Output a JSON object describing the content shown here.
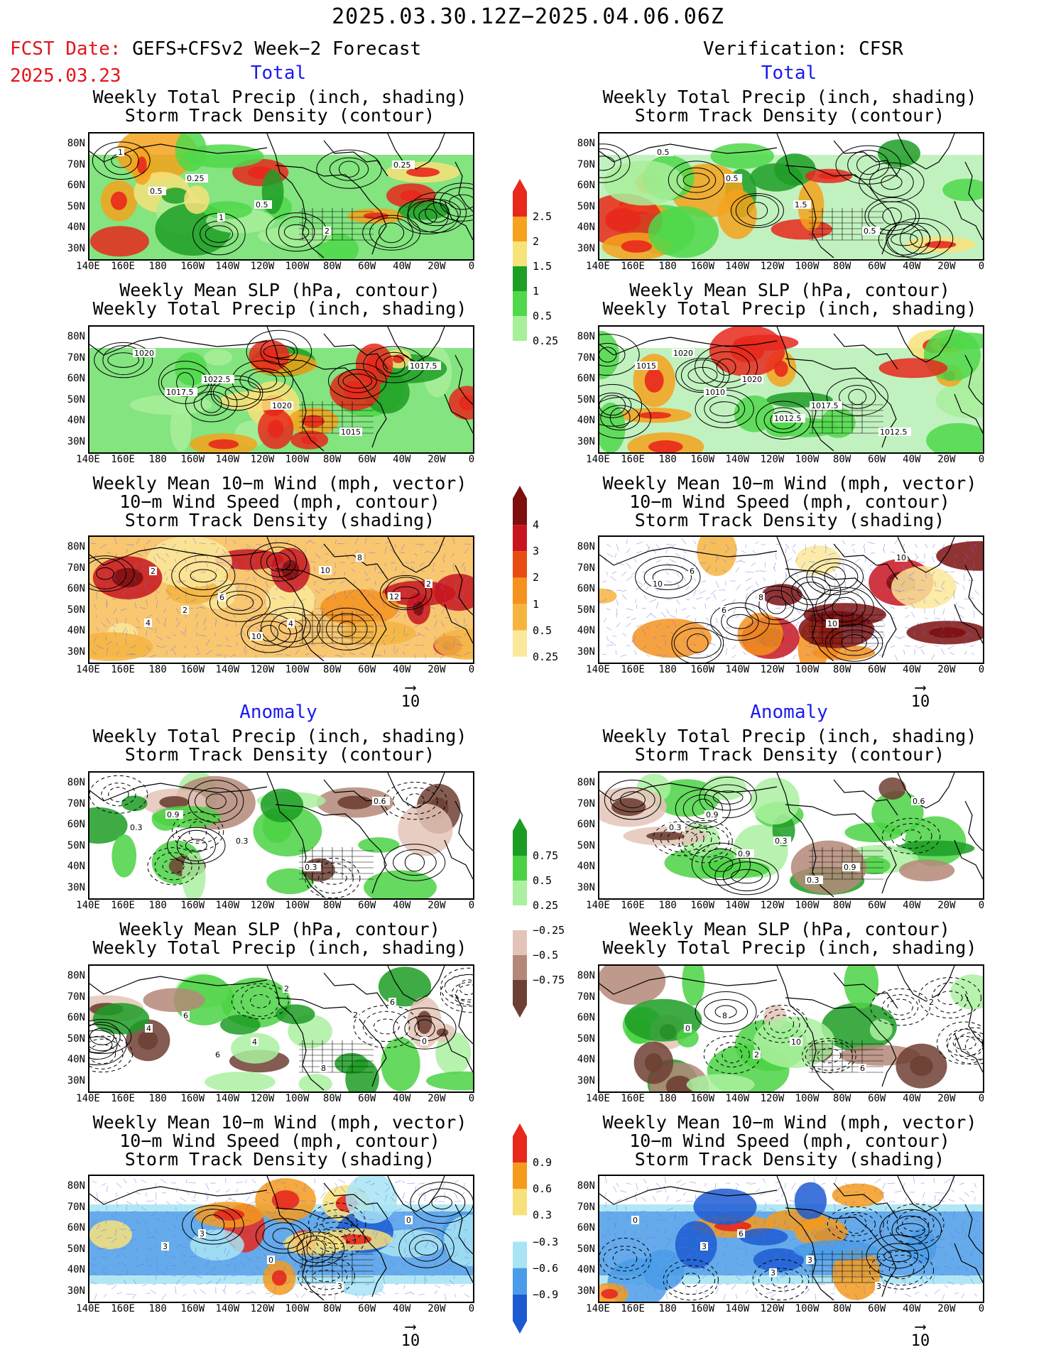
{
  "header": {
    "period": "2025.03.30.12Z−2025.04.06.06Z",
    "fcst_label": "FCST Date:",
    "forecast_name": "GEFS+CFSv2 Week−2 Forecast",
    "fcst_date": "2025.03.23",
    "verification": "Verification: CFSR"
  },
  "sections": {
    "total": "Total",
    "anomaly": "Anomaly"
  },
  "titles": {
    "precip_storm": "Weekly Total Precip (inch, shading)\nStorm Track Density (contour)",
    "slp_precip": "Weekly Mean SLP (hPa, contour)\nWeekly Total Precip (inch, shading)",
    "wind": "Weekly Mean 10−m Wind (mph, vector)\n10−m Wind Speed (mph, contour)\nStorm Track Density (shading)"
  },
  "axes": {
    "lat_labels": [
      "80N",
      "70N",
      "60N",
      "50N",
      "40N",
      "30N"
    ],
    "lon_labels": [
      "140E",
      "160E",
      "180",
      "160W",
      "140W",
      "120W",
      "100W",
      "80W",
      "60W",
      "40W",
      "20W",
      "0"
    ]
  },
  "vector_ref": "10",
  "colorbars": {
    "precip_total": {
      "labels": [
        "2.5",
        "2",
        "1.5",
        "1",
        "0.5",
        "0.25"
      ],
      "colors": [
        "#e8281c",
        "#f5a21c",
        "#f8e27a",
        "#1f9e26",
        "#4fd84a",
        "#a8ef9a",
        "#ffffff"
      ]
    },
    "storm_total": {
      "labels": [
        "4",
        "3",
        "2",
        "1",
        "0.5",
        "0.25"
      ],
      "colors": [
        "#7d0f0f",
        "#c8141e",
        "#e84c12",
        "#f5921e",
        "#f5b440",
        "#fbe89a",
        "#ffffff"
      ]
    },
    "precip_anom": {
      "labels": [
        "0.75",
        "0.5",
        "0.25",
        "−0.25",
        "−0.5",
        "−0.75"
      ],
      "colors": [
        "#1c9c24",
        "#4bd244",
        "#aaf0a0",
        "#ffffff",
        "#e4c4b8",
        "#b48878",
        "#6e4034"
      ]
    },
    "storm_anom": {
      "labels": [
        "0.9",
        "0.6",
        "0.3",
        "−0.3",
        "−0.6",
        "−0.9"
      ],
      "colors": [
        "#e8281c",
        "#f59a1c",
        "#f8e07a",
        "#ffffff",
        "#a8e4f4",
        "#4a9ce8",
        "#1c5ad2"
      ]
    }
  },
  "panel_labels": {
    "L1": [
      "1",
      "0.25",
      "0.5",
      "2",
      "0.25",
      "0.5",
      "1"
    ],
    "R1": [
      "0.5",
      "0.5",
      "1.5",
      "0.5"
    ],
    "L2": [
      "1020",
      "1022.5",
      "1020",
      "1015",
      "1017.5",
      "1017.5"
    ],
    "R2": [
      "1020",
      "1020",
      "1017.5",
      "1012.5",
      "1015",
      "1010",
      "1012.5"
    ],
    "L3": [
      "2",
      "6",
      "4",
      "8",
      "2",
      "2",
      "10",
      "10",
      "12",
      "4"
    ],
    "R3": [
      "6",
      "8",
      "10",
      "10",
      "10",
      "6"
    ],
    "L4": [
      "0.9",
      "0.3",
      "0.3",
      "0.6",
      "0.3"
    ],
    "R4": [
      "0.9",
      "0.3",
      "0.9",
      "0.6",
      "0.3",
      "0.9",
      "0.3"
    ],
    "L5": [
      "6",
      "4",
      "8",
      "6",
      "4",
      "6",
      "2",
      "2",
      "0"
    ],
    "R5": [
      "8",
      "10",
      "6",
      "2",
      "0",
      "2"
    ],
    "L6": [
      "3",
      "0",
      "3",
      "0",
      "3"
    ],
    "R6": [
      "6",
      "3",
      "3",
      "0",
      "3",
      "3"
    ]
  }
}
